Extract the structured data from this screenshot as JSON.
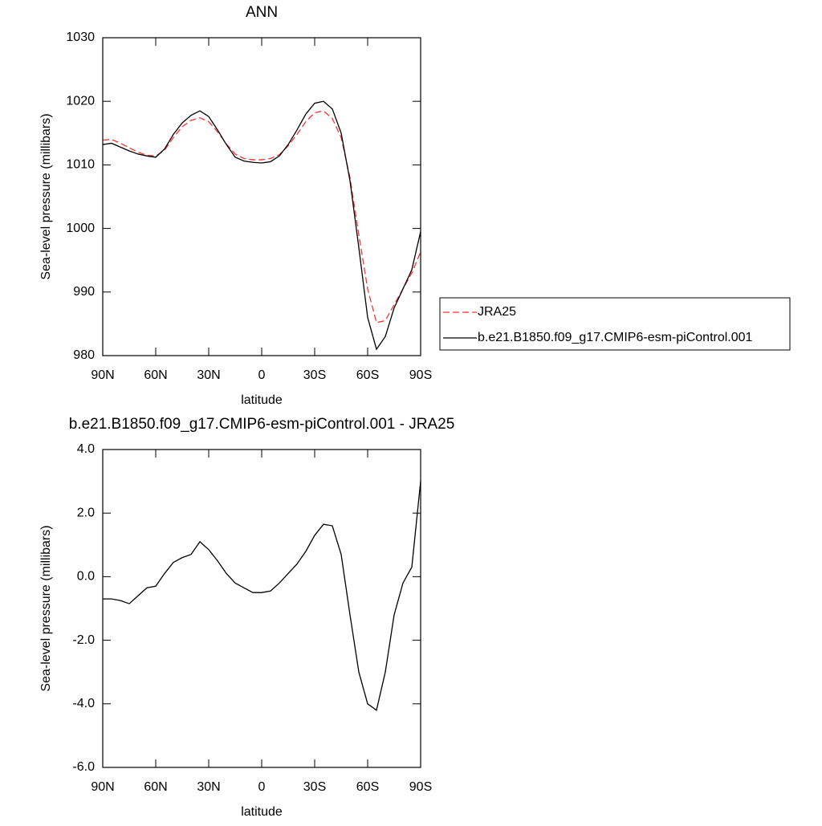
{
  "chart_data": [
    {
      "type": "line",
      "title": "ANN",
      "xlabel": "latitude",
      "ylabel": "Sea-level pressure (millibars)",
      "x": [
        90,
        85,
        80,
        75,
        70,
        65,
        60,
        55,
        50,
        45,
        40,
        35,
        30,
        25,
        20,
        15,
        10,
        5,
        0,
        -5,
        -10,
        -15,
        -20,
        -25,
        -30,
        -35,
        -40,
        -45,
        -50,
        -55,
        -60,
        -65,
        -70,
        -75,
        -80,
        -85,
        -90
      ],
      "xlim": [
        90,
        -90
      ],
      "xticks": [
        {
          "value": 90,
          "label": "90N"
        },
        {
          "value": 60,
          "label": "60N"
        },
        {
          "value": 30,
          "label": "30N"
        },
        0,
        {
          "value": -30,
          "label": "30S"
        },
        {
          "value": -60,
          "label": "60S"
        },
        {
          "value": -90,
          "label": "90S"
        }
      ],
      "ylim": [
        980,
        1030
      ],
      "yticks": [
        980,
        990,
        1000,
        1010,
        1020,
        1030
      ],
      "legend": "right",
      "series": [
        {
          "name": "JRA25",
          "color": "#ff3030",
          "dashed": true,
          "values": [
            1013.9,
            1014.0,
            1013.4,
            1012.7,
            1012.0,
            1011.5,
            1011.4,
            1012.3,
            1014.3,
            1016.0,
            1017.0,
            1017.4,
            1016.8,
            1015.2,
            1013.3,
            1011.7,
            1011.0,
            1010.8,
            1010.8,
            1011.0,
            1011.6,
            1013.0,
            1014.8,
            1016.8,
            1018.2,
            1018.5,
            1017.3,
            1014.3,
            1008.0,
            999.0,
            990.5,
            985.2,
            985.5,
            988.0,
            990.5,
            993.0,
            996.3
          ]
        },
        {
          "name": "b.e21.B1850.f09_g17.CMIP6-esm-piControl.001",
          "color": "#000000",
          "dashed": false,
          "values": [
            1013.2,
            1013.4,
            1012.8,
            1012.2,
            1011.7,
            1011.4,
            1011.2,
            1012.5,
            1014.8,
            1016.6,
            1017.8,
            1018.5,
            1017.6,
            1015.5,
            1013.2,
            1011.2,
            1010.6,
            1010.4,
            1010.3,
            1010.5,
            1011.4,
            1013.2,
            1015.5,
            1018.0,
            1019.7,
            1020.0,
            1018.8,
            1015.0,
            1007.5,
            997.0,
            986.0,
            981.0,
            983.0,
            987.5,
            990.5,
            993.5,
            999.5
          ]
        }
      ]
    },
    {
      "type": "line",
      "title": "b.e21.B1850.f09_g17.CMIP6-esm-piControl.001 - JRA25",
      "xlabel": "latitude",
      "ylabel": "Sea-level pressure (millibars)",
      "x": [
        90,
        85,
        80,
        75,
        70,
        65,
        60,
        55,
        50,
        45,
        40,
        35,
        30,
        25,
        20,
        15,
        10,
        5,
        0,
        -5,
        -10,
        -15,
        -20,
        -25,
        -30,
        -35,
        -40,
        -45,
        -50,
        -55,
        -60,
        -65,
        -70,
        -75,
        -80,
        -85,
        -90
      ],
      "xlim": [
        90,
        -90
      ],
      "xticks": [
        {
          "value": 90,
          "label": "90N"
        },
        {
          "value": 60,
          "label": "60N"
        },
        {
          "value": 30,
          "label": "30N"
        },
        0,
        {
          "value": -30,
          "label": "30S"
        },
        {
          "value": -60,
          "label": "60S"
        },
        {
          "value": -90,
          "label": "90S"
        }
      ],
      "ylim": [
        -6,
        4
      ],
      "yticks": [
        {
          "value": -6,
          "label": "-6.0"
        },
        {
          "value": -4,
          "label": "-4.0"
        },
        {
          "value": -2,
          "label": "-2.0"
        },
        {
          "value": 0,
          "label": "0.0"
        },
        {
          "value": 2,
          "label": "2.0"
        },
        {
          "value": 4,
          "label": "4.0"
        }
      ],
      "series": [
        {
          "color": "#000000",
          "dashed": false,
          "values": [
            -0.7,
            -0.7,
            -0.75,
            -0.85,
            -0.6,
            -0.35,
            -0.3,
            0.1,
            0.45,
            0.6,
            0.7,
            1.1,
            0.85,
            0.5,
            0.1,
            -0.2,
            -0.35,
            -0.5,
            -0.5,
            -0.45,
            -0.2,
            0.1,
            0.4,
            0.8,
            1.3,
            1.65,
            1.6,
            0.7,
            -1.2,
            -3.0,
            -4.0,
            -4.2,
            -3.0,
            -1.2,
            -0.2,
            0.3,
            3.0
          ]
        }
      ]
    }
  ]
}
